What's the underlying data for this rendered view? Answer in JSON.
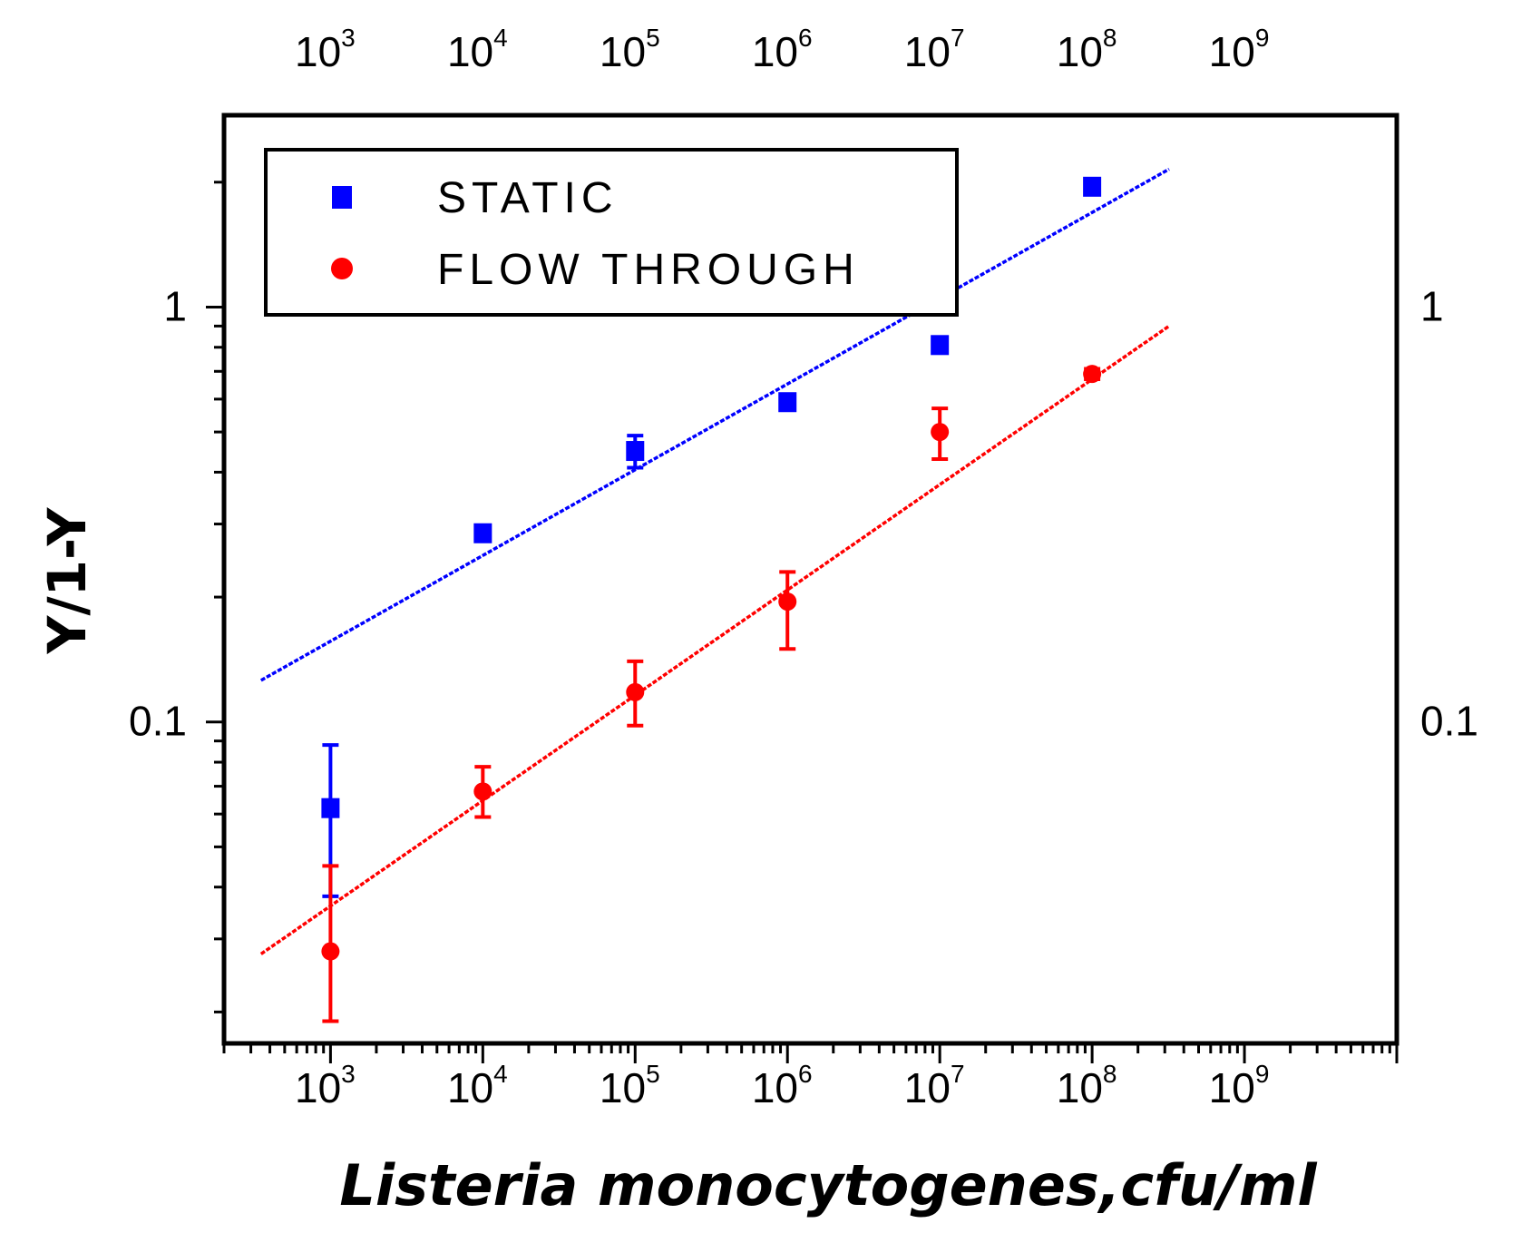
{
  "chart_data": {
    "type": "scatter",
    "title": "",
    "xlabel": "Listeria monocytogenes,cfu/ml",
    "ylabel": "Y/1-Y",
    "x_scale": "log",
    "y_scale": "log",
    "xlim": [
      200,
      10000000000
    ],
    "ylim": [
      0.0168,
      2.9
    ],
    "grid": false,
    "legend_position": "top-left",
    "x_ticks": [
      {
        "base": "10",
        "exp": "3",
        "value": 1000
      },
      {
        "base": "10",
        "exp": "4",
        "value": 10000
      },
      {
        "base": "10",
        "exp": "5",
        "value": 100000
      },
      {
        "base": "10",
        "exp": "6",
        "value": 1000000
      },
      {
        "base": "10",
        "exp": "7",
        "value": 10000000
      },
      {
        "base": "10",
        "exp": "8",
        "value": 100000000
      },
      {
        "base": "10",
        "exp": "9",
        "value": 1000000000
      }
    ],
    "y_ticks": [
      {
        "label": "1",
        "value": 1
      },
      {
        "label": "0.1",
        "value": 0.1
      }
    ],
    "series": [
      {
        "name": "STATIC",
        "color": "#0000ff",
        "marker": "square",
        "points": [
          {
            "x": 1000,
            "y": 0.062,
            "err_low": 0.038,
            "err_high": 0.088
          },
          {
            "x": 10000,
            "y": 0.285
          },
          {
            "x": 100000,
            "y": 0.45,
            "err_low": 0.41,
            "err_high": 0.49
          },
          {
            "x": 1000000,
            "y": 0.59
          },
          {
            "x": 10000000,
            "y": 0.81
          },
          {
            "x": 100000000,
            "y": 1.95
          }
        ],
        "fit": {
          "x": [
            350,
            320000000
          ],
          "y": [
            0.126,
            2.15
          ]
        }
      },
      {
        "name": "FLOW THROUGH",
        "color": "#ff0000",
        "marker": "circle",
        "points": [
          {
            "x": 1000,
            "y": 0.028,
            "err_low": 0.019,
            "err_high": 0.045
          },
          {
            "x": 10000,
            "y": 0.068,
            "err_low": 0.059,
            "err_high": 0.078
          },
          {
            "x": 100000,
            "y": 0.118,
            "err_low": 0.098,
            "err_high": 0.14
          },
          {
            "x": 1000000,
            "y": 0.195,
            "err_low": 0.15,
            "err_high": 0.23
          },
          {
            "x": 10000000,
            "y": 0.5,
            "err_low": 0.43,
            "err_high": 0.57
          },
          {
            "x": 100000000,
            "y": 0.69,
            "err_low": 0.67,
            "err_high": 0.71
          }
        ],
        "fit": {
          "x": [
            350,
            320000000
          ],
          "y": [
            0.0276,
            0.9
          ]
        }
      }
    ]
  }
}
